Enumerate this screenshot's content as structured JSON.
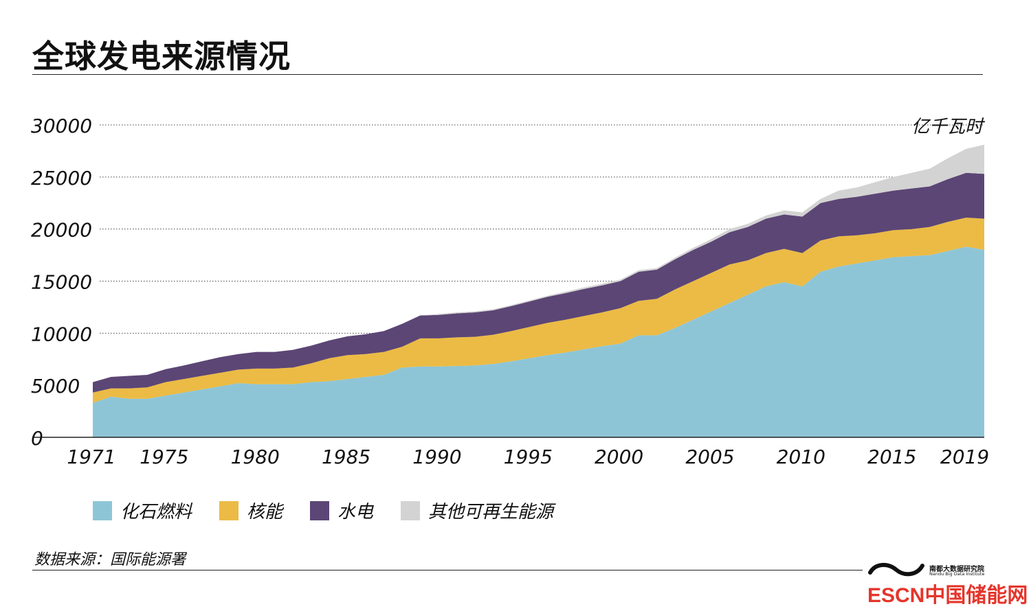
{
  "title": "全球发电来源情况",
  "source": "数据来源：国际能源署",
  "org": {
    "name": "南都大数据研究院",
    "name_en": "Nandu Big Data Institute"
  },
  "watermark": "ESCN中国储能网",
  "colors": {
    "fossil": "#8ec5d6",
    "nuclear": "#ebbb45",
    "hydro": "#5c4675",
    "other_renewable": "#d3d3d3",
    "watermark": "#e5352b"
  },
  "chart_data": {
    "type": "area",
    "stacked": true,
    "unit": "亿千瓦时",
    "ylim": [
      0,
      30000
    ],
    "yticks": [
      "30000",
      "25000",
      "20000",
      "15000",
      "10000",
      "5000",
      "0"
    ],
    "ytick_values": [
      30000,
      25000,
      20000,
      15000,
      10000,
      5000,
      0
    ],
    "xticks": [
      "1971",
      "1975",
      "1980",
      "1985",
      "1990",
      "1995",
      "2000",
      "2005",
      "2010",
      "2015",
      "2019"
    ],
    "xtick_values": [
      1971,
      1975,
      1980,
      1985,
      1990,
      1995,
      2000,
      2005,
      2010,
      2015,
      2019
    ],
    "grid": "dotted horizontal",
    "legend_position": "bottom",
    "x": [
      1971,
      1972,
      1973,
      1974,
      1975,
      1976,
      1977,
      1978,
      1979,
      1980,
      1981,
      1982,
      1983,
      1984,
      1985,
      1986,
      1987,
      1988,
      1989,
      1990,
      1991,
      1992,
      1993,
      1994,
      1995,
      1996,
      1997,
      1998,
      1999,
      2000,
      2001,
      2002,
      2003,
      2004,
      2005,
      2006,
      2007,
      2008,
      2009,
      2010,
      2011,
      2012,
      2013,
      2014,
      2015,
      2016,
      2017,
      2018,
      2019,
      2020
    ],
    "series": [
      {
        "name": "化石燃料",
        "key": "fossil",
        "values": [
          3300,
          3900,
          3700,
          3700,
          4000,
          4300,
          4600,
          4900,
          5200,
          5100,
          5100,
          5100,
          5300,
          5400,
          5600,
          5800,
          6000,
          6700,
          6800,
          6800,
          6850,
          6900,
          7050,
          7300,
          7600,
          7900,
          8150,
          8450,
          8750,
          9000,
          9800,
          9800,
          10500,
          11300,
          12100,
          12900,
          13700,
          14500,
          14900,
          14500,
          15900,
          16400,
          16700,
          17000,
          17300,
          17400,
          17500,
          17900,
          18300,
          18000
        ]
      },
      {
        "name": "核能",
        "key": "nuclear",
        "values": [
          1000,
          800,
          1000,
          1100,
          1300,
          1300,
          1300,
          1300,
          1300,
          1500,
          1500,
          1600,
          1800,
          2200,
          2300,
          2200,
          2200,
          2000,
          2700,
          2700,
          2750,
          2750,
          2800,
          2900,
          3000,
          3100,
          3150,
          3200,
          3250,
          3400,
          3300,
          3500,
          3700,
          3700,
          3700,
          3700,
          3300,
          3200,
          3200,
          3200,
          3000,
          2900,
          2700,
          2600,
          2600,
          2600,
          2700,
          2800,
          2800,
          3000
        ]
      },
      {
        "name": "水电",
        "key": "hydro",
        "values": [
          1000,
          1100,
          1200,
          1200,
          1250,
          1300,
          1400,
          1500,
          1500,
          1600,
          1600,
          1700,
          1700,
          1700,
          1800,
          1900,
          2000,
          2200,
          2200,
          2250,
          2300,
          2350,
          2350,
          2400,
          2450,
          2500,
          2550,
          2600,
          2600,
          2600,
          2800,
          2800,
          2900,
          3000,
          3000,
          3100,
          3200,
          3300,
          3300,
          3500,
          3600,
          3600,
          3700,
          3800,
          3800,
          3900,
          3900,
          4100,
          4300,
          4300
        ]
      },
      {
        "name": "其他可再生能源",
        "key": "other_renewable",
        "values": [
          0,
          0,
          0,
          0,
          0,
          0,
          0,
          0,
          0,
          0,
          0,
          0,
          0,
          0,
          0,
          0,
          0,
          0,
          0,
          100,
          100,
          100,
          100,
          100,
          100,
          100,
          150,
          150,
          150,
          150,
          150,
          150,
          150,
          200,
          250,
          300,
          300,
          300,
          400,
          400,
          400,
          800,
          900,
          1100,
          1300,
          1500,
          1700,
          2000,
          2300,
          2800
        ]
      }
    ]
  },
  "legend": [
    {
      "label": "化石燃料",
      "key": "fossil"
    },
    {
      "label": "核能",
      "key": "nuclear"
    },
    {
      "label": "水电",
      "key": "hydro"
    },
    {
      "label": "其他可再生能源",
      "key": "other_renewable"
    }
  ]
}
